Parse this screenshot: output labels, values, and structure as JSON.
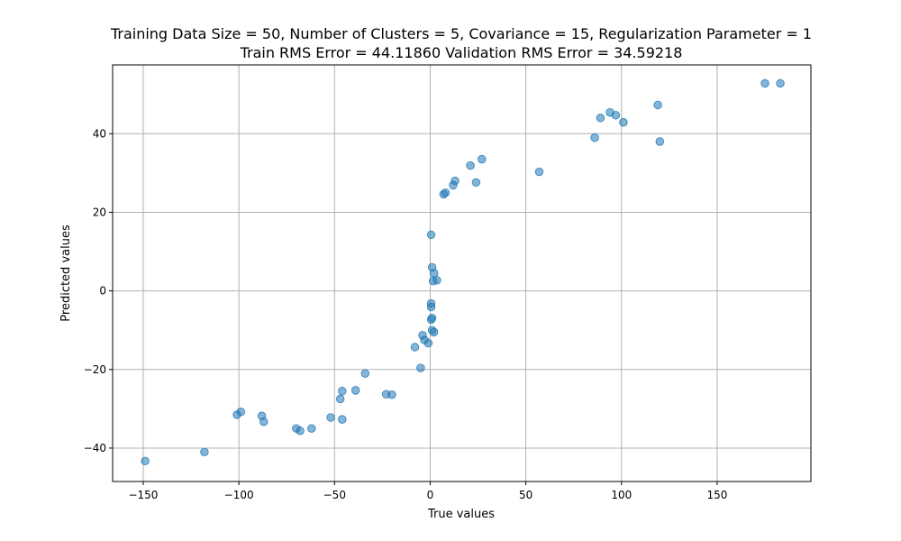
{
  "chart_data": {
    "type": "scatter",
    "title_line1": "Training Data Size = 50, Number of Clusters = 5, Covariance = 15, Regularization Parameter = 1",
    "title_line2": "Train RMS Error = 44.11860 Validation RMS Error = 34.59218",
    "xlabel": "True values",
    "ylabel": "Predicted values",
    "xlim": [
      -166,
      199
    ],
    "ylim": [
      -48.5,
      57.5
    ],
    "xticks": [
      -150,
      -100,
      -50,
      0,
      50,
      100,
      150
    ],
    "yticks": [
      -40,
      -20,
      0,
      20,
      40
    ],
    "grid": true,
    "marker_color": "#1f77b4",
    "marker_alpha": 0.55,
    "points": [
      {
        "x": -149,
        "y": -43.3
      },
      {
        "x": -118,
        "y": -41.0
      },
      {
        "x": -101,
        "y": -31.5
      },
      {
        "x": -99,
        "y": -30.8
      },
      {
        "x": -88,
        "y": -31.8
      },
      {
        "x": -87,
        "y": -33.3
      },
      {
        "x": -70,
        "y": -35.0
      },
      {
        "x": -68,
        "y": -35.6
      },
      {
        "x": -62,
        "y": -35.0
      },
      {
        "x": -52,
        "y": -32.2
      },
      {
        "x": -47,
        "y": -27.5
      },
      {
        "x": -46,
        "y": -25.5
      },
      {
        "x": -46,
        "y": -32.7
      },
      {
        "x": -39,
        "y": -25.3
      },
      {
        "x": -34,
        "y": -21.0
      },
      {
        "x": -23,
        "y": -26.3
      },
      {
        "x": -20,
        "y": -26.4
      },
      {
        "x": -8,
        "y": -14.3
      },
      {
        "x": -5,
        "y": -19.6
      },
      {
        "x": -4,
        "y": -11.3
      },
      {
        "x": -3,
        "y": -12.5
      },
      {
        "x": -1,
        "y": -13.3
      },
      {
        "x": 0.5,
        "y": -3.2
      },
      {
        "x": 0.5,
        "y": -4.1
      },
      {
        "x": 0.5,
        "y": -7.3
      },
      {
        "x": 1,
        "y": -6.9
      },
      {
        "x": 1,
        "y": -10.0
      },
      {
        "x": 2,
        "y": -10.5
      },
      {
        "x": 0.5,
        "y": 14.3
      },
      {
        "x": 1,
        "y": 6.0
      },
      {
        "x": 2,
        "y": 4.5
      },
      {
        "x": 1.5,
        "y": 2.5
      },
      {
        "x": 3.5,
        "y": 2.7
      },
      {
        "x": 7,
        "y": 24.6
      },
      {
        "x": 8,
        "y": 25.0
      },
      {
        "x": 12,
        "y": 26.9
      },
      {
        "x": 13,
        "y": 28.0
      },
      {
        "x": 21,
        "y": 31.9
      },
      {
        "x": 24,
        "y": 27.6
      },
      {
        "x": 27,
        "y": 33.5
      },
      {
        "x": 57,
        "y": 30.3
      },
      {
        "x": 86,
        "y": 39.0
      },
      {
        "x": 89,
        "y": 44.0
      },
      {
        "x": 94,
        "y": 45.4
      },
      {
        "x": 97,
        "y": 44.7
      },
      {
        "x": 101,
        "y": 42.9
      },
      {
        "x": 119,
        "y": 47.3
      },
      {
        "x": 120,
        "y": 38.0
      },
      {
        "x": 175,
        "y": 52.8
      },
      {
        "x": 183,
        "y": 52.8
      }
    ]
  }
}
